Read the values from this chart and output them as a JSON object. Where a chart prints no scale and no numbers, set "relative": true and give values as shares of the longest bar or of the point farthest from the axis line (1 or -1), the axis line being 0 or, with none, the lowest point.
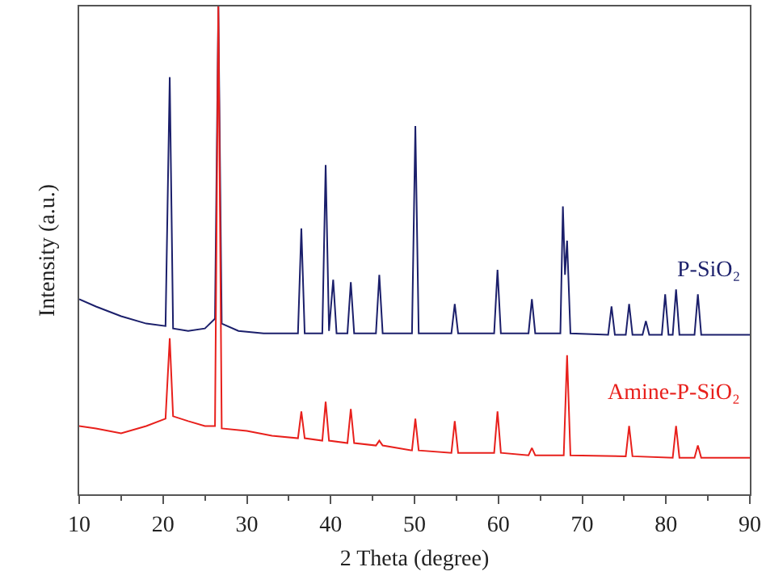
{
  "chart_data": {
    "type": "line",
    "relative": true,
    "xlabel": "2 Theta (degree)",
    "ylabel": "Intensity (a.u.)",
    "xlim": [
      10,
      90
    ],
    "xticks": [
      10,
      20,
      30,
      40,
      50,
      60,
      70,
      80,
      90
    ],
    "grid": false,
    "legend": false,
    "marker": "none",
    "line_style": "solid",
    "series": [
      {
        "name": "P-SiO₂",
        "color": "#1b1f6b",
        "x": [
          10,
          12,
          15,
          18,
          20.3,
          20.8,
          21.2,
          23,
          25,
          26.2,
          26.6,
          27.0,
          29,
          32,
          36.1,
          36.5,
          36.9,
          39.0,
          39.4,
          39.8,
          40.3,
          40.7,
          42.0,
          42.4,
          42.8,
          45.4,
          45.8,
          46.2,
          49.7,
          50.1,
          50.5,
          54.4,
          54.8,
          55.2,
          59.5,
          59.9,
          60.3,
          63.6,
          64.0,
          64.4,
          67.4,
          67.7,
          67.95,
          68.2,
          68.6,
          73.1,
          73.5,
          73.9,
          75.2,
          75.6,
          76.0,
          77.2,
          77.6,
          78.0,
          79.5,
          79.9,
          80.3,
          80.8,
          81.2,
          81.6,
          83.4,
          83.8,
          84.2,
          90
        ],
        "values": [
          0.4,
          0.385,
          0.365,
          0.35,
          0.345,
          0.855,
          0.34,
          0.335,
          0.34,
          0.36,
          1.0,
          0.35,
          0.335,
          0.33,
          0.33,
          0.545,
          0.33,
          0.33,
          0.675,
          0.335,
          0.44,
          0.33,
          0.33,
          0.435,
          0.33,
          0.33,
          0.45,
          0.33,
          0.33,
          0.755,
          0.33,
          0.33,
          0.39,
          0.33,
          0.33,
          0.46,
          0.33,
          0.33,
          0.4,
          0.33,
          0.33,
          0.59,
          0.45,
          0.52,
          0.33,
          0.327,
          0.385,
          0.327,
          0.327,
          0.39,
          0.327,
          0.327,
          0.355,
          0.327,
          0.327,
          0.41,
          0.327,
          0.327,
          0.42,
          0.327,
          0.327,
          0.41,
          0.327,
          0.327
        ]
      },
      {
        "name": "Amine-P-SiO₂",
        "color": "#e8201c",
        "x": [
          10,
          12,
          15,
          18,
          20.3,
          20.8,
          21.2,
          23,
          25,
          26.2,
          26.6,
          27.0,
          30,
          33,
          36.1,
          36.5,
          36.9,
          39.0,
          39.4,
          39.8,
          42.0,
          42.4,
          42.8,
          45.4,
          45.8,
          46.2,
          49.7,
          50.1,
          50.5,
          54.4,
          54.8,
          55.2,
          59.5,
          59.9,
          60.3,
          63.6,
          64.0,
          64.4,
          67.8,
          68.2,
          68.6,
          75.2,
          75.6,
          76.0,
          80.8,
          81.2,
          81.6,
          83.4,
          83.8,
          84.2,
          90
        ],
        "values": [
          0.14,
          0.135,
          0.125,
          0.14,
          0.155,
          0.32,
          0.16,
          0.15,
          0.14,
          0.14,
          1.0,
          0.135,
          0.13,
          0.12,
          0.115,
          0.17,
          0.115,
          0.11,
          0.19,
          0.11,
          0.105,
          0.175,
          0.105,
          0.1,
          0.11,
          0.1,
          0.09,
          0.155,
          0.09,
          0.085,
          0.15,
          0.085,
          0.085,
          0.17,
          0.085,
          0.08,
          0.095,
          0.08,
          0.08,
          0.285,
          0.08,
          0.078,
          0.14,
          0.078,
          0.075,
          0.14,
          0.075,
          0.075,
          0.1,
          0.075,
          0.075
        ]
      }
    ]
  }
}
